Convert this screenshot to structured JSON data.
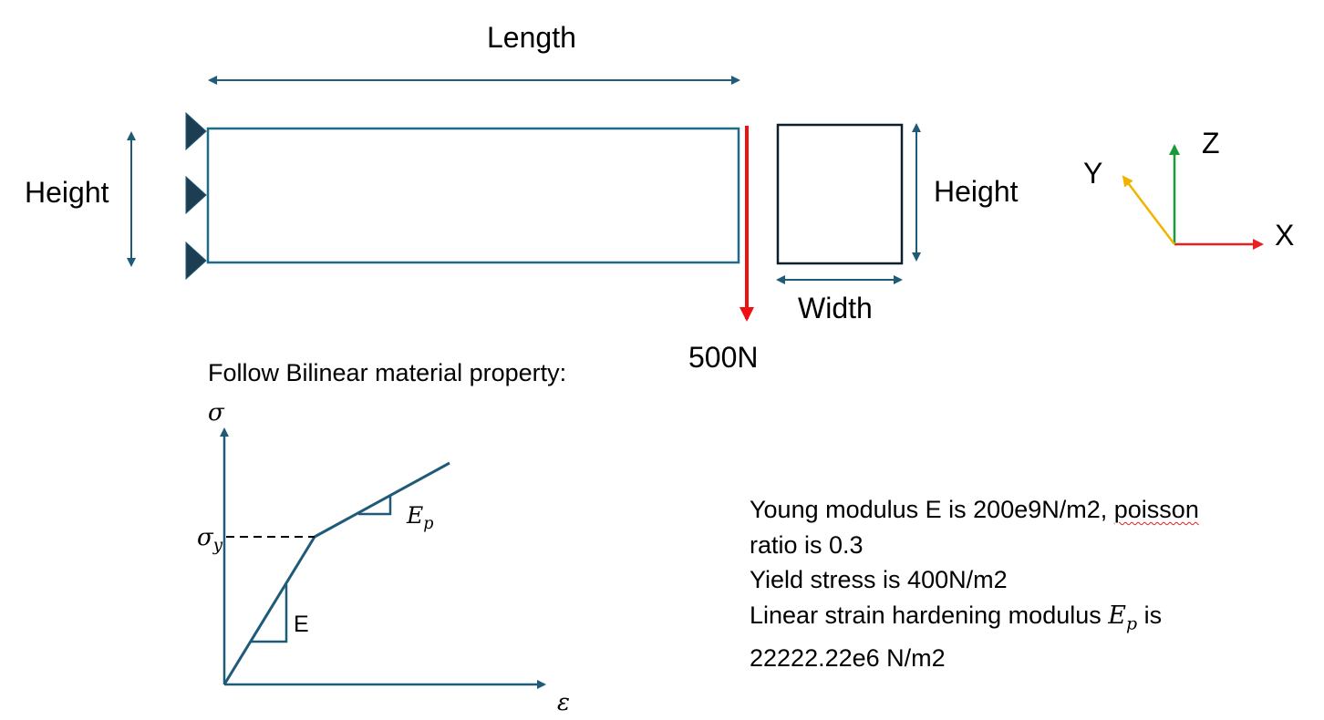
{
  "beam": {
    "length_label": "Length",
    "height_label_left": "Height",
    "load_label": "500N"
  },
  "cross_section": {
    "height_label": "Height",
    "width_label": "Width"
  },
  "axes": {
    "x_label": "X",
    "y_label": "Y",
    "z_label": "Z"
  },
  "material": {
    "heading": "Follow Bilinear material property:",
    "graph": {
      "y_axis_symbol": "σ",
      "x_axis_symbol": "ε",
      "yield_symbol": "σ",
      "yield_subscript": "y",
      "elastic_slope_label": "E",
      "plastic_slope_symbol": "E",
      "plastic_slope_subscript": "p"
    },
    "lines": {
      "line1_a": "Young modulus E is 200e9N/m2, ",
      "line1_b": "poisson",
      "line2": "ratio is 0.3",
      "line3": "Yield stress is 400N/m2",
      "line4_a": "Linear strain hardening modulus ",
      "line4_sym": "E",
      "line4_sub": "p",
      "line4_b": " is",
      "line5": "22222.22e6 N/m2"
    }
  },
  "colors": {
    "dark_blue": "#1f5a78",
    "support_fill": "#1d3d52",
    "load_red": "#ee1111",
    "x_axis": "#e82020",
    "y_axis": "#f0b400",
    "z_axis": "#1a9a3a",
    "section_outline": "#0d1f2b"
  }
}
